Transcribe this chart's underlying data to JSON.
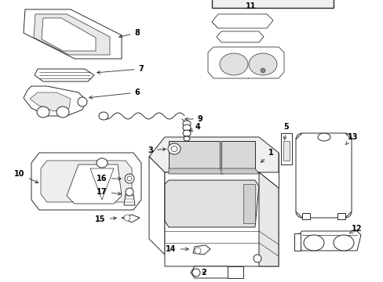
{
  "bg_color": "#ffffff",
  "line_color": "#2a2a2a",
  "fig_width": 4.89,
  "fig_height": 3.6,
  "dpi": 100,
  "label_fontsize": 7.0
}
